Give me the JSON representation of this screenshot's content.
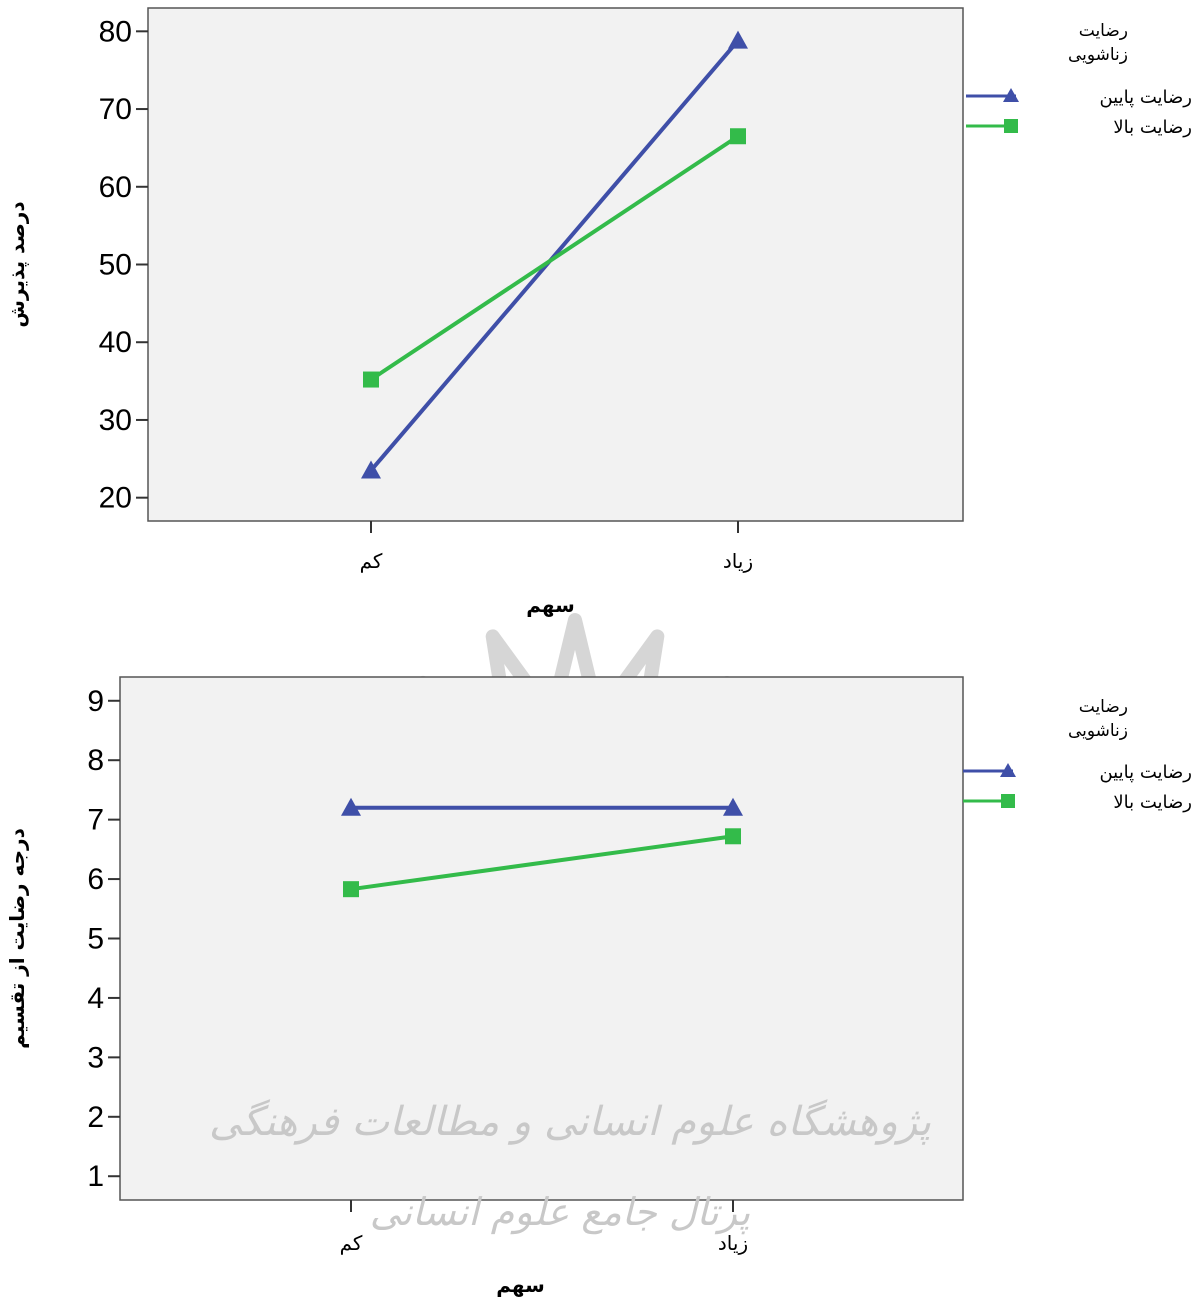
{
  "chart_data": [
    {
      "type": "line",
      "xlabel": "سهم",
      "ylabel": "درصد پذیرش",
      "categories": [
        "کم",
        "زیاد"
      ],
      "yticks": [
        20,
        30,
        40,
        50,
        60,
        70,
        80
      ],
      "ylim": [
        17,
        83
      ],
      "grid": false,
      "legend": {
        "title_line1": "رضایت",
        "title_line2": "زناشویی",
        "placement": "right"
      },
      "series": [
        {
          "name": "رضایت پایین",
          "values": [
            23.5,
            78.8
          ],
          "color": "#3F4FA8",
          "marker": "triangle"
        },
        {
          "name": "رضایت بالا",
          "values": [
            35.2,
            66.5
          ],
          "color": "#33BB4A",
          "marker": "square"
        }
      ]
    },
    {
      "type": "line",
      "xlabel": "سهم",
      "ylabel": "درجه رضایت از تقسیم",
      "categories": [
        "کم",
        "زیاد"
      ],
      "yticks": [
        1,
        2,
        3,
        4,
        5,
        6,
        7,
        8,
        9
      ],
      "ylim": [
        0.6,
        9.4
      ],
      "grid": false,
      "legend": {
        "title_line1": "رضایت",
        "title_line2": "زناشویی",
        "placement": "right"
      },
      "series": [
        {
          "name": "رضایت پایین",
          "values": [
            7.2,
            7.2
          ],
          "color": "#3F4FA8",
          "marker": "triangle"
        },
        {
          "name": "رضایت بالا",
          "values": [
            5.83,
            6.72
          ],
          "color": "#33BB4A",
          "marker": "square"
        }
      ]
    }
  ],
  "watermark": {
    "line1": "پژوهشگاه علوم انسانی و مطالعات فرهنگی",
    "line2": "پرتال جامع علوم انسانی"
  },
  "colors": {
    "plot_bg": "#F2F2F2",
    "watermark": "#C8C8C8"
  }
}
